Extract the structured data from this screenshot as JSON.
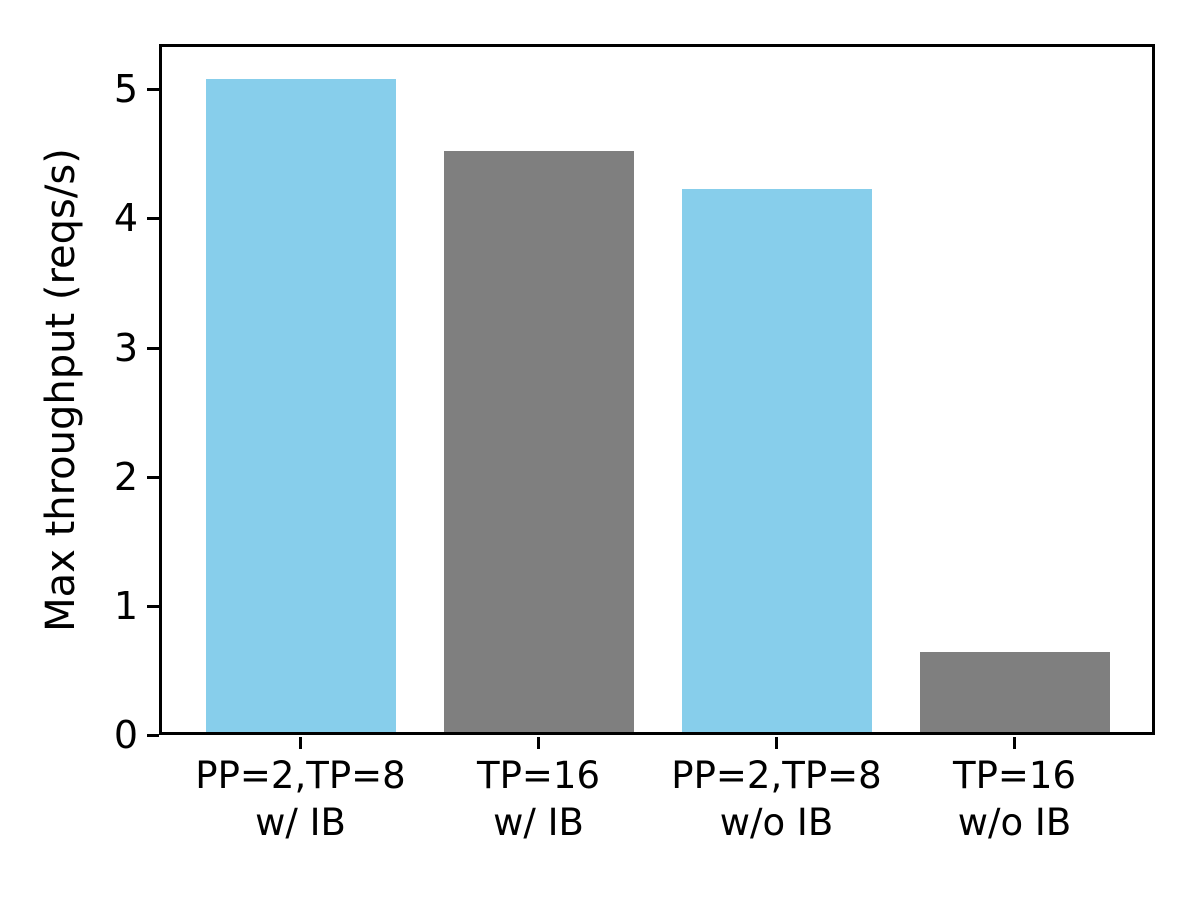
{
  "chart_data": {
    "type": "bar",
    "title": "",
    "xlabel": "",
    "ylabel": "Max throughput (reqs/s)",
    "categories": [
      "PP=2,TP=8\nw/ IB",
      "TP=16\nw/ IB",
      "PP=2,TP=8\nw/o IB",
      "TP=16\nw/o IB"
    ],
    "category_lines": [
      [
        "PP=2,TP=8",
        "w/ IB"
      ],
      [
        "TP=16",
        "w/ IB"
      ],
      [
        "PP=2,TP=8",
        "w/o IB"
      ],
      [
        "TP=16",
        "w/o IB"
      ]
    ],
    "values": [
      5.08,
      4.52,
      4.23,
      0.64
    ],
    "bar_colors": [
      "#87CEEB",
      "#7F7F7F",
      "#87CEEB",
      "#7F7F7F"
    ],
    "yticks": [
      0,
      1,
      2,
      3,
      4,
      5
    ],
    "ylim": [
      0,
      5.35
    ],
    "grid": false,
    "legend": null,
    "colors": {
      "skyblue": "#87CEEB",
      "gray": "#7F7F7F",
      "axis": "#000000",
      "background": "#FFFFFF"
    }
  }
}
